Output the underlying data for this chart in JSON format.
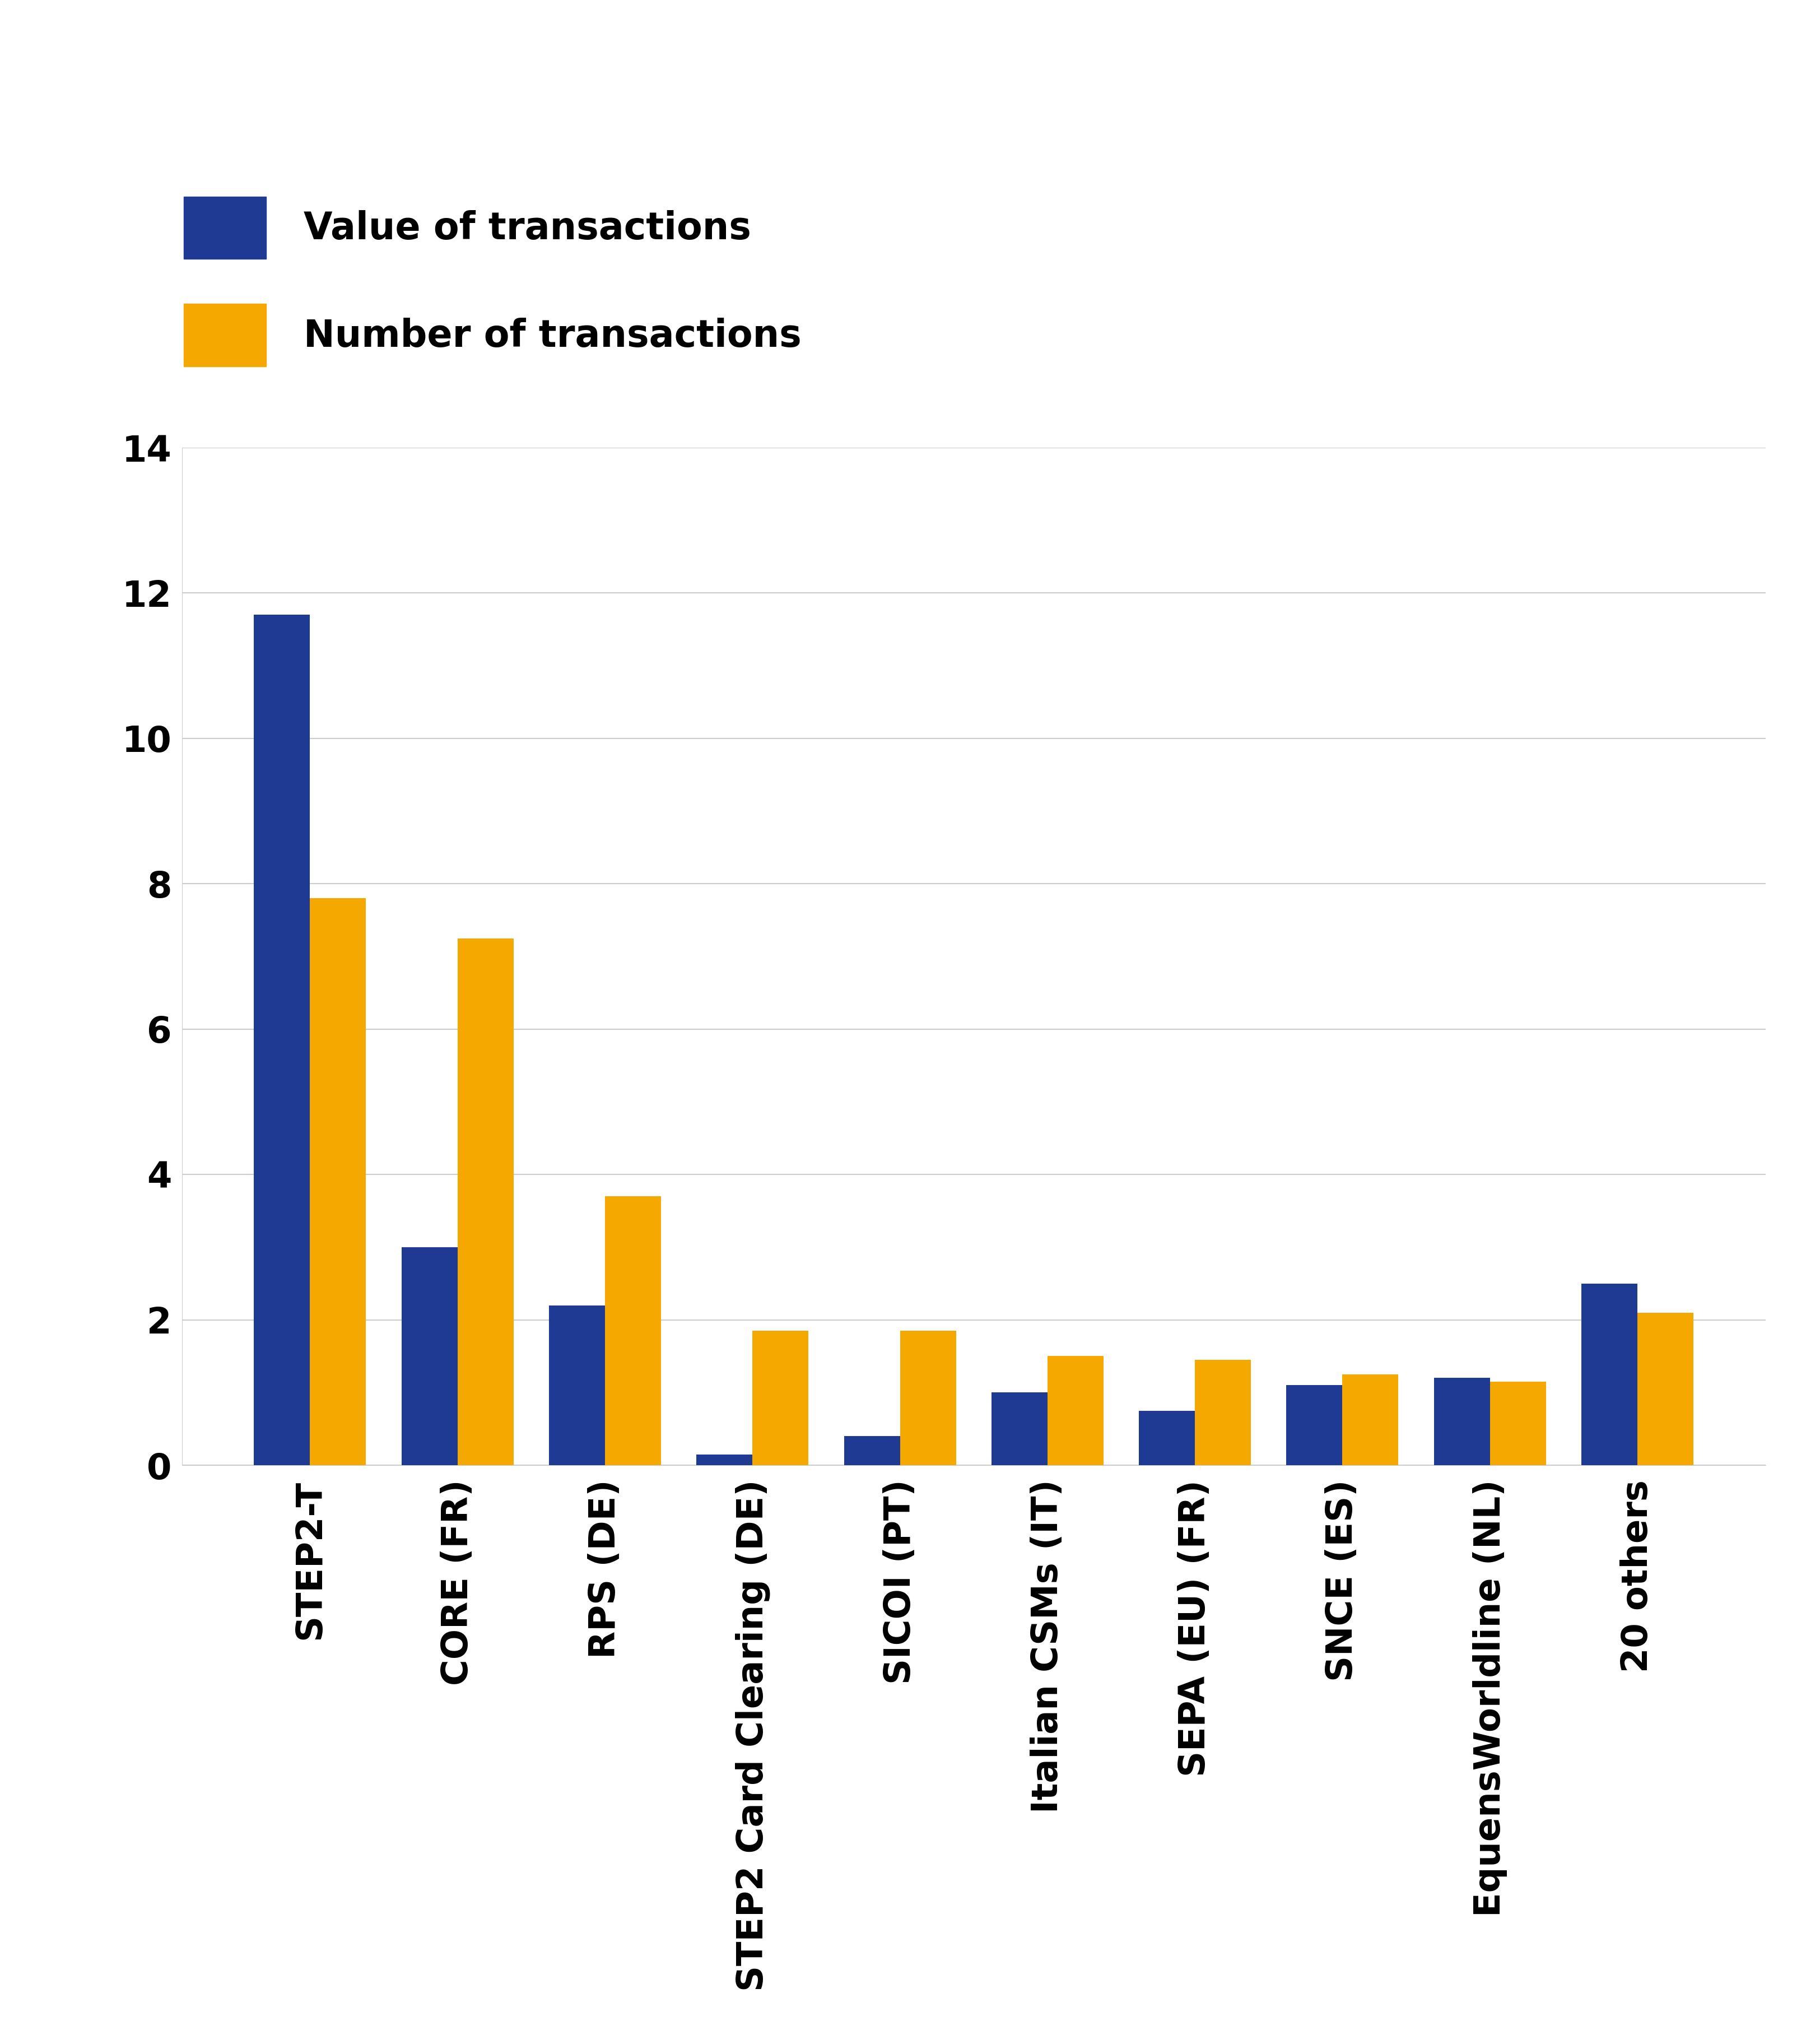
{
  "categories": [
    "STEP2-T",
    "CORE (FR)",
    "RPS (DE)",
    "STEP2 Card Clearing (DE)",
    "SICOI (PT)",
    "Italian CSMs (IT)",
    "SEPA (EU) (FR)",
    "SNCE (ES)",
    "EquensWorldline (NL)",
    "20 others"
  ],
  "value_of_transactions": [
    11.7,
    3.0,
    2.2,
    0.15,
    0.4,
    1.0,
    0.75,
    1.1,
    1.2,
    2.5
  ],
  "number_of_transactions": [
    7.8,
    7.25,
    3.7,
    1.85,
    1.85,
    1.5,
    1.45,
    1.25,
    1.15,
    2.1
  ],
  "bar_color_value": "#1f3a93",
  "bar_color_number": "#f5a800",
  "legend_label_value": "Value of transactions",
  "legend_label_number": "Number of transactions",
  "ylim": [
    0,
    14
  ],
  "yticks": [
    0,
    2,
    4,
    6,
    8,
    10,
    12,
    14
  ],
  "background_color": "#ffffff",
  "grid_color": "#cccccc",
  "tick_fontsize": 46,
  "legend_fontsize": 48,
  "xlabel_fontsize": 46,
  "bar_width": 0.38
}
